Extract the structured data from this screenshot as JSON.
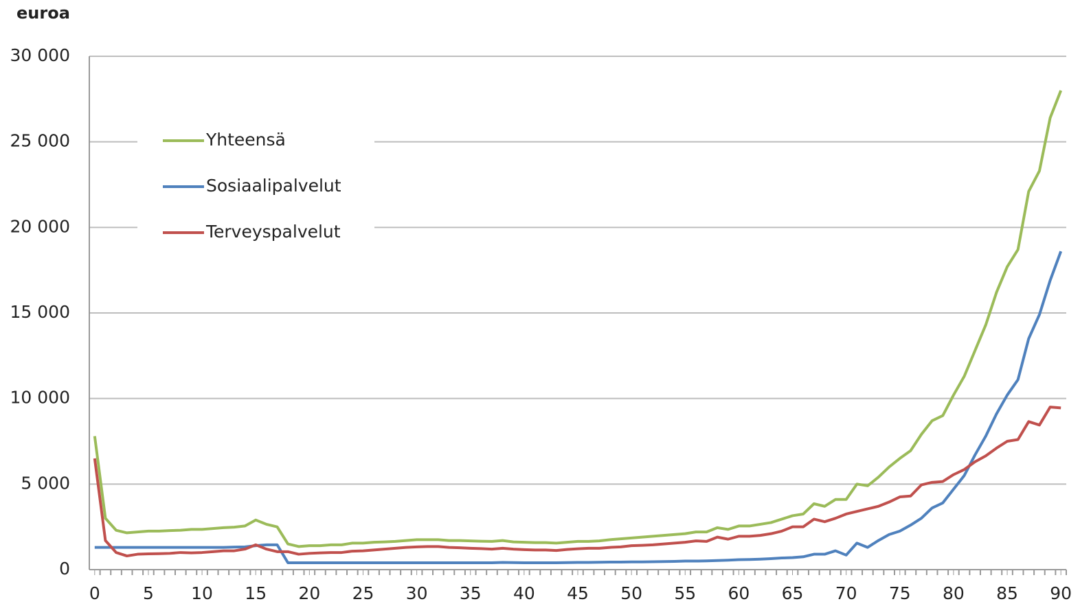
{
  "chart_data": {
    "type": "line",
    "ylabel": "euroa",
    "x": [
      0,
      1,
      2,
      3,
      4,
      5,
      6,
      7,
      8,
      9,
      10,
      11,
      12,
      13,
      14,
      15,
      16,
      17,
      18,
      19,
      20,
      21,
      22,
      23,
      24,
      25,
      26,
      27,
      28,
      29,
      30,
      31,
      32,
      33,
      34,
      35,
      36,
      37,
      38,
      39,
      40,
      41,
      42,
      43,
      44,
      45,
      46,
      47,
      48,
      49,
      50,
      51,
      52,
      53,
      54,
      55,
      56,
      57,
      58,
      59,
      60,
      61,
      62,
      63,
      64,
      65,
      66,
      67,
      68,
      69,
      70,
      71,
      72,
      73,
      74,
      75,
      76,
      77,
      78,
      79,
      80,
      81,
      82,
      83,
      84,
      85,
      86,
      87,
      88,
      89,
      90
    ],
    "series": [
      {
        "name": "Yhteensä",
        "color": "#9bbb59",
        "values": [
          7800,
          3000,
          2300,
          2150,
          2200,
          2250,
          2250,
          2280,
          2300,
          2350,
          2350,
          2400,
          2450,
          2480,
          2550,
          2900,
          2650,
          2500,
          1500,
          1350,
          1400,
          1400,
          1450,
          1450,
          1550,
          1550,
          1600,
          1620,
          1650,
          1700,
          1750,
          1750,
          1750,
          1700,
          1700,
          1680,
          1660,
          1650,
          1700,
          1620,
          1600,
          1580,
          1580,
          1550,
          1600,
          1650,
          1650,
          1680,
          1750,
          1800,
          1850,
          1900,
          1950,
          2000,
          2050,
          2100,
          2200,
          2200,
          2450,
          2350,
          2550,
          2550,
          2650,
          2750,
          2950,
          3150,
          3250,
          3850,
          3700,
          4100,
          4100,
          5000,
          4900,
          5400,
          6000,
          6500,
          6950,
          7900,
          8700,
          9000,
          10200,
          11300,
          12800,
          14300,
          16200,
          17700,
          18700,
          22100,
          23300,
          26400,
          28000
        ]
      },
      {
        "name": "Sosiaalipalvelut",
        "color": "#4f81bd",
        "values": [
          1300,
          1300,
          1300,
          1300,
          1300,
          1300,
          1300,
          1300,
          1300,
          1300,
          1300,
          1300,
          1300,
          1320,
          1330,
          1400,
          1450,
          1450,
          400,
          400,
          400,
          400,
          400,
          400,
          400,
          400,
          400,
          400,
          400,
          400,
          400,
          400,
          400,
          400,
          400,
          400,
          400,
          400,
          420,
          410,
          400,
          400,
          400,
          400,
          410,
          420,
          420,
          430,
          440,
          440,
          450,
          450,
          460,
          470,
          480,
          500,
          500,
          510,
          530,
          550,
          580,
          590,
          610,
          640,
          680,
          700,
          750,
          900,
          900,
          1100,
          850,
          1550,
          1300,
          1700,
          2050,
          2250,
          2600,
          3000,
          3600,
          3900,
          4700,
          5500,
          6700,
          7800,
          9100,
          10200,
          11100,
          13500,
          14900,
          16900,
          18600
        ]
      },
      {
        "name": "Terveyspalvelut",
        "color": "#c0504d",
        "values": [
          6500,
          1700,
          1000,
          800,
          900,
          920,
          930,
          950,
          1000,
          980,
          1000,
          1050,
          1100,
          1100,
          1200,
          1450,
          1200,
          1050,
          1050,
          900,
          950,
          980,
          1000,
          1000,
          1080,
          1100,
          1150,
          1200,
          1250,
          1300,
          1330,
          1350,
          1350,
          1300,
          1280,
          1250,
          1230,
          1200,
          1250,
          1200,
          1170,
          1150,
          1150,
          1120,
          1180,
          1220,
          1250,
          1250,
          1300,
          1330,
          1400,
          1420,
          1450,
          1500,
          1550,
          1600,
          1680,
          1650,
          1900,
          1780,
          1950,
          1950,
          2000,
          2100,
          2250,
          2500,
          2500,
          2950,
          2800,
          3000,
          3250,
          3400,
          3550,
          3700,
          3950,
          4250,
          4300,
          4950,
          5100,
          5150,
          5550,
          5850,
          6300,
          6650,
          7100,
          7500,
          7600,
          8650,
          8450,
          9500,
          9450
        ]
      }
    ],
    "xlim": [
      -0.5,
      90.5
    ],
    "xticks": [
      0,
      5,
      10,
      15,
      20,
      25,
      30,
      35,
      40,
      45,
      50,
      55,
      60,
      65,
      70,
      75,
      80,
      85,
      90
    ],
    "ylim": [
      0,
      30000
    ],
    "yticks": [
      0,
      {
        "value": 5000,
        "label": "5 000"
      },
      {
        "value": 10000,
        "label": "10 000"
      },
      {
        "value": 15000,
        "label": "15 000"
      },
      {
        "value": 20000,
        "label": "20 000"
      },
      {
        "value": 25000,
        "label": "25 000"
      },
      {
        "value": 30000,
        "label": "30 000"
      }
    ],
    "grid": true,
    "legend": "upper left"
  }
}
